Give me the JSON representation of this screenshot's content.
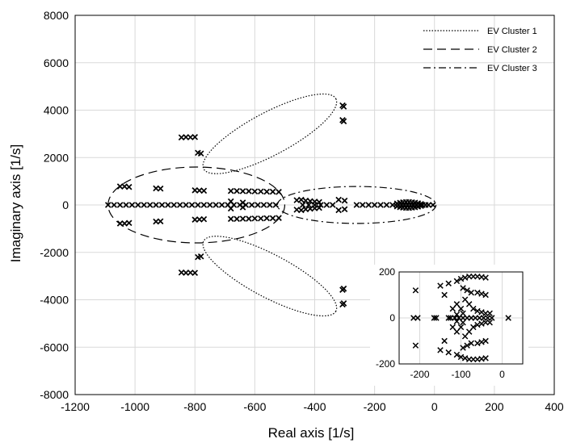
{
  "chart_data": [
    {
      "type": "scatter",
      "title": "",
      "xlabel": "Real axis [1/s]",
      "ylabel": "Imaginary axis [1/s]",
      "xlim": [
        -1200,
        400
      ],
      "ylim": [
        -8000,
        8000
      ],
      "x_ticks": [
        -1200,
        -1000,
        -800,
        -600,
        -400,
        -200,
        0,
        200,
        400
      ],
      "y_ticks": [
        -8000,
        -6000,
        -4000,
        -2000,
        0,
        2000,
        4000,
        6000,
        8000
      ],
      "x_tick_labels": [
        "-1200",
        "-1000",
        "-800",
        "-600",
        "-400",
        "-200",
        "0",
        "200",
        "400"
      ],
      "y_tick_labels": [
        "-8000",
        "-6000",
        "-4000",
        "-2000",
        "0",
        "2000",
        "4000",
        "6000",
        "8000"
      ],
      "grid": true,
      "marker": "x",
      "legend_position": "top-right",
      "legend": [
        {
          "label": "EV Cluster 1",
          "dash": "dotted"
        },
        {
          "label": "EV Cluster 2",
          "dash": "dashed"
        },
        {
          "label": "EV Cluster 3",
          "dash": "dash-dot"
        }
      ],
      "clusters": [
        {
          "name": "EV Cluster 1",
          "center": [
            -550,
            3000
          ],
          "semi_axes": [
            250,
            900
          ],
          "rotation_deg": 28
        },
        {
          "name": "EV Cluster 1",
          "center": [
            -550,
            -3000
          ],
          "semi_axes": [
            250,
            900
          ],
          "rotation_deg": -28
        },
        {
          "name": "EV Cluster 2",
          "center": [
            -795,
            0
          ],
          "semi_axes": [
            295,
            1600
          ],
          "rotation_deg": 0
        },
        {
          "name": "EV Cluster 3",
          "center": [
            -260,
            0
          ],
          "semi_axes": [
            265,
            780
          ],
          "rotation_deg": 0
        }
      ],
      "points": [
        [
          -307,
          4200
        ],
        [
          -303,
          4150
        ],
        [
          -307,
          3580
        ],
        [
          -303,
          3530
        ],
        [
          -307,
          -4200
        ],
        [
          -303,
          -4150
        ],
        [
          -307,
          -3580
        ],
        [
          -303,
          -3530
        ],
        [
          -845,
          2850
        ],
        [
          -830,
          2860
        ],
        [
          -815,
          2855
        ],
        [
          -800,
          2865
        ],
        [
          -790,
          2200
        ],
        [
          -780,
          2170
        ],
        [
          -845,
          -2850
        ],
        [
          -830,
          -2860
        ],
        [
          -815,
          -2855
        ],
        [
          -800,
          -2865
        ],
        [
          -790,
          -2200
        ],
        [
          -780,
          -2170
        ],
        [
          -1050,
          780
        ],
        [
          -1035,
          780
        ],
        [
          -1020,
          760
        ],
        [
          -930,
          700
        ],
        [
          -915,
          690
        ],
        [
          -800,
          620
        ],
        [
          -785,
          610
        ],
        [
          -770,
          600
        ],
        [
          -680,
          590
        ],
        [
          -660,
          590
        ],
        [
          -640,
          580
        ],
        [
          -620,
          580
        ],
        [
          -600,
          570
        ],
        [
          -580,
          570
        ],
        [
          -560,
          560
        ],
        [
          -540,
          560
        ],
        [
          -520,
          550
        ],
        [
          -1050,
          -780
        ],
        [
          -1035,
          -780
        ],
        [
          -1020,
          -760
        ],
        [
          -930,
          -700
        ],
        [
          -915,
          -690
        ],
        [
          -800,
          -620
        ],
        [
          -785,
          -610
        ],
        [
          -770,
          -600
        ],
        [
          -680,
          -590
        ],
        [
          -660,
          -590
        ],
        [
          -640,
          -580
        ],
        [
          -620,
          -580
        ],
        [
          -600,
          -570
        ],
        [
          -580,
          -570
        ],
        [
          -560,
          -560
        ],
        [
          -540,
          -560
        ],
        [
          -520,
          -550
        ],
        [
          -1090,
          0
        ],
        [
          -1070,
          0
        ],
        [
          -1050,
          0
        ],
        [
          -1030,
          0
        ],
        [
          -1010,
          0
        ],
        [
          -990,
          0
        ],
        [
          -970,
          0
        ],
        [
          -950,
          0
        ],
        [
          -930,
          0
        ],
        [
          -910,
          0
        ],
        [
          -890,
          0
        ],
        [
          -870,
          0
        ],
        [
          -850,
          0
        ],
        [
          -830,
          0
        ],
        [
          -810,
          0
        ],
        [
          -790,
          0
        ],
        [
          -770,
          0
        ],
        [
          -750,
          0
        ],
        [
          -730,
          0
        ],
        [
          -710,
          0
        ],
        [
          -690,
          0
        ],
        [
          -670,
          0
        ],
        [
          -650,
          0
        ],
        [
          -630,
          0
        ],
        [
          -610,
          0
        ],
        [
          -590,
          0
        ],
        [
          -570,
          0
        ],
        [
          -550,
          0
        ],
        [
          -530,
          0
        ],
        [
          -680,
          150
        ],
        [
          -680,
          -150
        ],
        [
          -640,
          100
        ],
        [
          -640,
          -100
        ],
        [
          -460,
          200
        ],
        [
          -445,
          220
        ],
        [
          -430,
          180
        ],
        [
          -415,
          160
        ],
        [
          -400,
          140
        ],
        [
          -385,
          120
        ],
        [
          -460,
          -200
        ],
        [
          -445,
          -220
        ],
        [
          -430,
          -180
        ],
        [
          -415,
          -160
        ],
        [
          -400,
          -140
        ],
        [
          -385,
          -120
        ],
        [
          -320,
          220
        ],
        [
          -300,
          180
        ],
        [
          -320,
          -220
        ],
        [
          -300,
          -180
        ],
        [
          -440,
          0
        ],
        [
          -420,
          0
        ],
        [
          -400,
          0
        ],
        [
          -380,
          0
        ],
        [
          -360,
          0
        ],
        [
          -340,
          0
        ],
        [
          -260,
          0
        ],
        [
          -240,
          0
        ],
        [
          -220,
          0
        ],
        [
          -200,
          0
        ],
        [
          -180,
          0
        ],
        [
          -160,
          0
        ],
        [
          -140,
          0
        ],
        [
          -125,
          60
        ],
        [
          -115,
          90
        ],
        [
          -105,
          110
        ],
        [
          -95,
          120
        ],
        [
          -85,
          120
        ],
        [
          -75,
          110
        ],
        [
          -65,
          95
        ],
        [
          -55,
          70
        ],
        [
          -45,
          40
        ],
        [
          -125,
          -60
        ],
        [
          -115,
          -90
        ],
        [
          -105,
          -110
        ],
        [
          -95,
          -120
        ],
        [
          -85,
          -120
        ],
        [
          -75,
          -110
        ],
        [
          -65,
          -95
        ],
        [
          -55,
          -70
        ],
        [
          -45,
          -40
        ],
        [
          -120,
          0
        ],
        [
          -110,
          0
        ],
        [
          -100,
          0
        ],
        [
          -90,
          0
        ],
        [
          -80,
          0
        ],
        [
          -70,
          0
        ],
        [
          -60,
          0
        ],
        [
          -50,
          0
        ],
        [
          -40,
          0
        ],
        [
          -30,
          0
        ],
        [
          -20,
          0
        ],
        [
          -5,
          0
        ]
      ]
    },
    {
      "type": "scatter",
      "title": "",
      "xlabel": "",
      "ylabel": "",
      "position": "inset-bottom-right",
      "xlim": [
        -250,
        50
      ],
      "ylim": [
        -200,
        200
      ],
      "x_ticks": [
        -200,
        -100,
        0
      ],
      "y_ticks": [
        -200,
        0,
        200
      ],
      "x_tick_labels": [
        "-200",
        "-100",
        "0"
      ],
      "y_tick_labels": [
        "-200",
        "0",
        "200"
      ],
      "grid": true,
      "marker": "x",
      "points": [
        [
          -210,
          120
        ],
        [
          -150,
          140
        ],
        [
          -130,
          150
        ],
        [
          -140,
          100
        ],
        [
          -110,
          160
        ],
        [
          -100,
          170
        ],
        [
          -90,
          175
        ],
        [
          -80,
          180
        ],
        [
          -70,
          180
        ],
        [
          -60,
          180
        ],
        [
          -50,
          178
        ],
        [
          -40,
          175
        ],
        [
          -95,
          130
        ],
        [
          -85,
          120
        ],
        [
          -75,
          110
        ],
        [
          -60,
          110
        ],
        [
          -50,
          105
        ],
        [
          -40,
          100
        ],
        [
          -90,
          80
        ],
        [
          -80,
          60
        ],
        [
          -70,
          40
        ],
        [
          -60,
          30
        ],
        [
          -50,
          25
        ],
        [
          -40,
          20
        ],
        [
          -30,
          20
        ],
        [
          -100,
          40
        ],
        [
          -95,
          20
        ],
        [
          -110,
          60
        ],
        [
          -120,
          40
        ],
        [
          -210,
          -120
        ],
        [
          -150,
          -140
        ],
        [
          -130,
          -150
        ],
        [
          -140,
          -100
        ],
        [
          -110,
          -160
        ],
        [
          -100,
          -170
        ],
        [
          -90,
          -175
        ],
        [
          -80,
          -180
        ],
        [
          -70,
          -180
        ],
        [
          -60,
          -180
        ],
        [
          -50,
          -178
        ],
        [
          -40,
          -175
        ],
        [
          -95,
          -130
        ],
        [
          -85,
          -120
        ],
        [
          -75,
          -110
        ],
        [
          -60,
          -110
        ],
        [
          -50,
          -105
        ],
        [
          -40,
          -100
        ],
        [
          -90,
          -80
        ],
        [
          -80,
          -60
        ],
        [
          -70,
          -40
        ],
        [
          -60,
          -30
        ],
        [
          -50,
          -25
        ],
        [
          -40,
          -20
        ],
        [
          -30,
          -20
        ],
        [
          -100,
          -40
        ],
        [
          -95,
          -20
        ],
        [
          -110,
          -60
        ],
        [
          -120,
          -40
        ],
        [
          -215,
          0
        ],
        [
          -205,
          0
        ],
        [
          -165,
          0
        ],
        [
          -160,
          0
        ],
        [
          -130,
          0
        ],
        [
          -125,
          0
        ],
        [
          -115,
          0
        ],
        [
          -105,
          0
        ],
        [
          -95,
          0
        ],
        [
          -85,
          0
        ],
        [
          -75,
          0
        ],
        [
          -65,
          0
        ],
        [
          -55,
          0
        ],
        [
          -45,
          0
        ],
        [
          -35,
          0
        ],
        [
          -25,
          0
        ],
        [
          15,
          0
        ],
        [
          -110,
          15
        ],
        [
          -110,
          -15
        ]
      ]
    }
  ]
}
